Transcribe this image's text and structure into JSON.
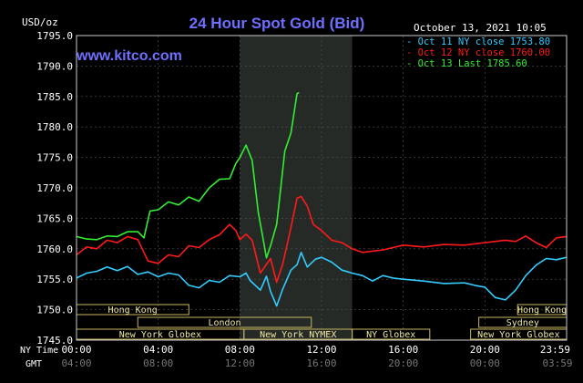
{
  "chart_data": {
    "type": "line",
    "title": "24 Hour Spot Gold (Bid)",
    "watermark": "www.kitco.com",
    "datestamp": "October 13, 2021 10:05",
    "ylabel": "USD/oz",
    "ylim": [
      1745.0,
      1795.0
    ],
    "yticks": [
      "1795.0",
      "1790.0",
      "1785.0",
      "1780.0",
      "1775.0",
      "1770.0",
      "1765.0",
      "1760.0",
      "1755.0",
      "1750.0",
      "1745.0"
    ],
    "xlim_hours": [
      0,
      24
    ],
    "ny_time_label": "NY Time",
    "gmt_label": "GMT",
    "ny_ticks": [
      "00:00",
      "04:00",
      "08:00",
      "12:00",
      "16:00",
      "20:00",
      "23:59"
    ],
    "gmt_ticks": [
      "04:00",
      "08:00",
      "12:00",
      "16:00",
      "20:00",
      "00:00",
      "03:59"
    ],
    "legend_placement": "top-right",
    "legend": [
      {
        "label": "Oct 11 NY close 1753.80",
        "color": "#33ccff"
      },
      {
        "label": "Oct 12 NY close 1760.00",
        "color": "#ff1a1a"
      },
      {
        "label": "Oct 13 Last 1785.60",
        "color": "#33ee33"
      }
    ],
    "highlight_hours": [
      8.0,
      13.5
    ],
    "series": [
      {
        "color": "#33ccff",
        "points": [
          [
            0,
            1755.2
          ],
          [
            0.5,
            1756.0
          ],
          [
            1,
            1756.3
          ],
          [
            1.5,
            1757.0
          ],
          [
            2,
            1756.4
          ],
          [
            2.5,
            1757.1
          ],
          [
            3,
            1755.8
          ],
          [
            3.5,
            1756.2
          ],
          [
            4,
            1755.4
          ],
          [
            4.5,
            1756.0
          ],
          [
            5,
            1755.7
          ],
          [
            5.5,
            1754.0
          ],
          [
            6,
            1753.6
          ],
          [
            6.5,
            1754.8
          ],
          [
            7,
            1754.5
          ],
          [
            7.5,
            1755.6
          ],
          [
            8,
            1755.4
          ],
          [
            8.3,
            1756.0
          ],
          [
            8.5,
            1754.8
          ],
          [
            9,
            1753.2
          ],
          [
            9.3,
            1755.5
          ],
          [
            9.5,
            1753.0
          ],
          [
            9.8,
            1750.6
          ],
          [
            10.1,
            1753.4
          ],
          [
            10.5,
            1756.5
          ],
          [
            10.8,
            1757.4
          ],
          [
            11,
            1759.4
          ],
          [
            11.3,
            1757.0
          ],
          [
            11.7,
            1758.3
          ],
          [
            12,
            1758.6
          ],
          [
            12.5,
            1757.8
          ],
          [
            13,
            1756.5
          ],
          [
            13.5,
            1756.0
          ],
          [
            14,
            1755.6
          ],
          [
            14.5,
            1754.7
          ],
          [
            15,
            1755.6
          ],
          [
            15.5,
            1755.2
          ],
          [
            16,
            1755.0
          ],
          [
            17,
            1754.7
          ],
          [
            18,
            1754.3
          ],
          [
            19,
            1754.4
          ],
          [
            19.5,
            1754.0
          ],
          [
            20,
            1753.7
          ],
          [
            20.5,
            1752.0
          ],
          [
            21,
            1751.6
          ],
          [
            21.5,
            1753.2
          ],
          [
            22,
            1755.6
          ],
          [
            22.5,
            1757.3
          ],
          [
            23,
            1758.4
          ],
          [
            23.5,
            1758.2
          ],
          [
            24,
            1758.6
          ]
        ]
      },
      {
        "color": "#ff1a1a",
        "points": [
          [
            0,
            1759.0
          ],
          [
            0.5,
            1760.3
          ],
          [
            1,
            1760.0
          ],
          [
            1.5,
            1761.4
          ],
          [
            2,
            1761.0
          ],
          [
            2.5,
            1762.0
          ],
          [
            3,
            1761.5
          ],
          [
            3.5,
            1758.0
          ],
          [
            4,
            1757.6
          ],
          [
            4.5,
            1759.0
          ],
          [
            5,
            1758.7
          ],
          [
            5.5,
            1760.5
          ],
          [
            6,
            1760.2
          ],
          [
            6.5,
            1761.5
          ],
          [
            7,
            1762.3
          ],
          [
            7.5,
            1764.0
          ],
          [
            7.8,
            1763.0
          ],
          [
            8,
            1761.5
          ],
          [
            8.3,
            1762.4
          ],
          [
            8.6,
            1761.4
          ],
          [
            9,
            1756.0
          ],
          [
            9.5,
            1758.4
          ],
          [
            9.8,
            1754.5
          ],
          [
            10.1,
            1757.5
          ],
          [
            10.5,
            1763.5
          ],
          [
            10.8,
            1768.3
          ],
          [
            11,
            1768.6
          ],
          [
            11.3,
            1767.0
          ],
          [
            11.6,
            1764.0
          ],
          [
            12,
            1763.0
          ],
          [
            12.5,
            1761.4
          ],
          [
            13,
            1761.0
          ],
          [
            13.5,
            1760.0
          ],
          [
            14,
            1759.4
          ],
          [
            15,
            1759.8
          ],
          [
            16,
            1760.6
          ],
          [
            17,
            1760.3
          ],
          [
            18,
            1760.7
          ],
          [
            19,
            1760.6
          ],
          [
            20,
            1761.0
          ],
          [
            21,
            1761.4
          ],
          [
            21.5,
            1761.2
          ],
          [
            22,
            1762.1
          ],
          [
            22.5,
            1761.0
          ],
          [
            23,
            1760.2
          ],
          [
            23.5,
            1761.8
          ],
          [
            24,
            1762.0
          ]
        ]
      },
      {
        "color": "#33ee33",
        "points": [
          [
            0,
            1762.0
          ],
          [
            0.5,
            1761.6
          ],
          [
            1,
            1761.5
          ],
          [
            1.5,
            1762.1
          ],
          [
            2,
            1762.0
          ],
          [
            2.5,
            1762.8
          ],
          [
            3,
            1762.8
          ],
          [
            3.3,
            1761.8
          ],
          [
            3.6,
            1766.2
          ],
          [
            4,
            1766.4
          ],
          [
            4.5,
            1767.7
          ],
          [
            5,
            1767.2
          ],
          [
            5.5,
            1768.5
          ],
          [
            6,
            1767.8
          ],
          [
            6.5,
            1770.0
          ],
          [
            7,
            1771.4
          ],
          [
            7.5,
            1771.5
          ],
          [
            7.8,
            1774.0
          ],
          [
            8,
            1775.0
          ],
          [
            8.3,
            1777.0
          ],
          [
            8.6,
            1774.5
          ],
          [
            8.9,
            1766.0
          ],
          [
            9.1,
            1762.3
          ],
          [
            9.3,
            1758.5
          ],
          [
            9.5,
            1760.5
          ],
          [
            9.8,
            1764.0
          ],
          [
            10,
            1770.0
          ],
          [
            10.2,
            1776.0
          ],
          [
            10.5,
            1779.0
          ],
          [
            10.8,
            1785.5
          ],
          [
            10.9,
            1785.6
          ]
        ]
      }
    ],
    "sessions": [
      {
        "label": "Hong Kong",
        "start": 0,
        "end": 5.5,
        "row": 0
      },
      {
        "label": "Hong Kong",
        "start": 21.6,
        "end": 24,
        "row": 0
      },
      {
        "label": "London",
        "start": 3,
        "end": 11.5,
        "row": 1
      },
      {
        "label": "Sydney",
        "start": 19.7,
        "end": 24,
        "row": 1
      },
      {
        "label": "New York Globex",
        "start": 0,
        "end": 8.2,
        "row": 2
      },
      {
        "label": "New York NYMEX",
        "start": 8.2,
        "end": 13.5,
        "row": 2
      },
      {
        "label": "NY Globex",
        "start": 13.5,
        "end": 17.3,
        "row": 2
      },
      {
        "label": "New York Globex",
        "start": 19.3,
        "end": 24,
        "row": 2
      }
    ]
  }
}
